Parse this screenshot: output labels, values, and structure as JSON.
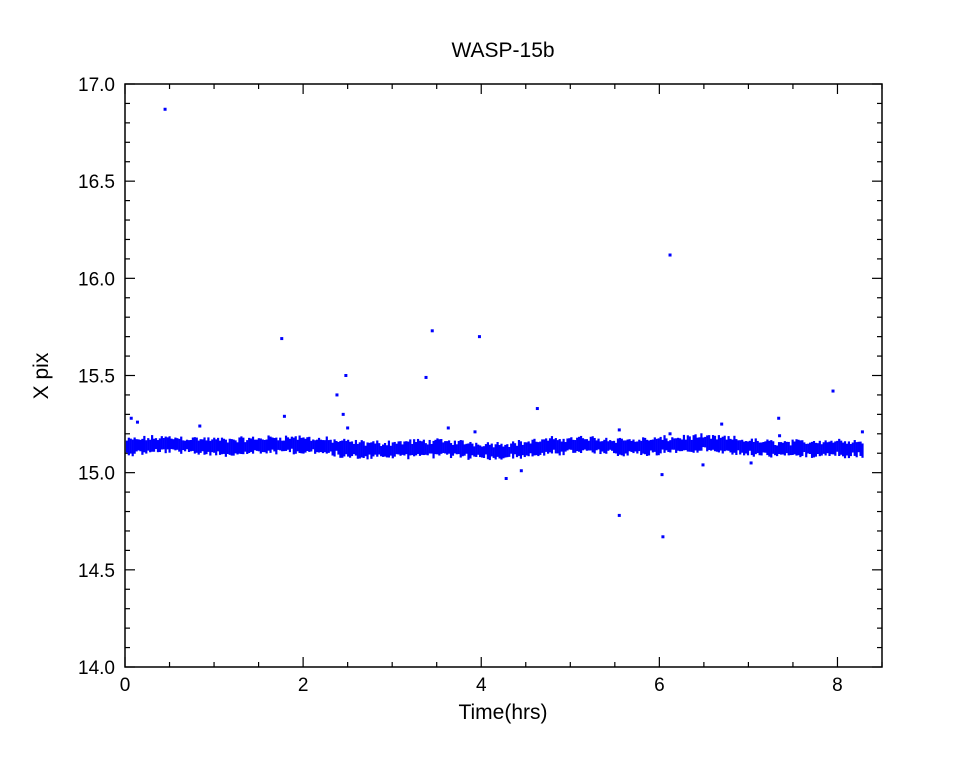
{
  "chart_data": {
    "type": "scatter",
    "title": "WASP-15b",
    "xlabel": "Time(hrs)",
    "ylabel": "X pix",
    "xlim": [
      0,
      8.5
    ],
    "ylim": [
      14.0,
      17.0
    ],
    "x_ticks": [
      0,
      2,
      4,
      6,
      8
    ],
    "x_tick_labels": [
      "0",
      "2",
      "4",
      "6",
      "8"
    ],
    "x_minor_step": 0.5,
    "y_ticks": [
      14.0,
      14.5,
      15.0,
      15.5,
      16.0,
      16.5,
      17.0
    ],
    "y_tick_labels": [
      "14.0",
      "14.5",
      "15.0",
      "15.5",
      "16.0",
      "16.5",
      "17.0"
    ],
    "y_minor_step": 0.1,
    "grid": false,
    "legend": "none",
    "marker_color": "#0000ff",
    "series": [
      {
        "main_band": {
          "x_start": 0.02,
          "x_end": 8.28,
          "n_points": 380,
          "center": 15.13,
          "spread": 0.035
        },
        "outliers": [
          {
            "x": 0.07,
            "y": 15.28
          },
          {
            "x": 0.14,
            "y": 15.26
          },
          {
            "x": 0.45,
            "y": 16.87
          },
          {
            "x": 0.84,
            "y": 15.24
          },
          {
            "x": 1.76,
            "y": 15.69
          },
          {
            "x": 1.79,
            "y": 15.29
          },
          {
            "x": 2.38,
            "y": 15.4
          },
          {
            "x": 2.45,
            "y": 15.3
          },
          {
            "x": 2.48,
            "y": 15.5
          },
          {
            "x": 2.5,
            "y": 15.23
          },
          {
            "x": 3.38,
            "y": 15.49
          },
          {
            "x": 3.45,
            "y": 15.73
          },
          {
            "x": 3.63,
            "y": 15.23
          },
          {
            "x": 3.93,
            "y": 15.21
          },
          {
            "x": 3.98,
            "y": 15.7
          },
          {
            "x": 4.28,
            "y": 14.97
          },
          {
            "x": 4.45,
            "y": 15.01
          },
          {
            "x": 4.63,
            "y": 15.33
          },
          {
            "x": 5.55,
            "y": 14.78
          },
          {
            "x": 5.55,
            "y": 15.22
          },
          {
            "x": 6.03,
            "y": 14.99
          },
          {
            "x": 6.04,
            "y": 14.67
          },
          {
            "x": 6.12,
            "y": 16.12
          },
          {
            "x": 6.12,
            "y": 15.2
          },
          {
            "x": 6.49,
            "y": 15.04
          },
          {
            "x": 6.7,
            "y": 15.25
          },
          {
            "x": 7.03,
            "y": 15.05
          },
          {
            "x": 7.34,
            "y": 15.28
          },
          {
            "x": 7.35,
            "y": 15.19
          },
          {
            "x": 7.95,
            "y": 15.42
          },
          {
            "x": 8.28,
            "y": 15.21
          }
        ]
      }
    ]
  }
}
